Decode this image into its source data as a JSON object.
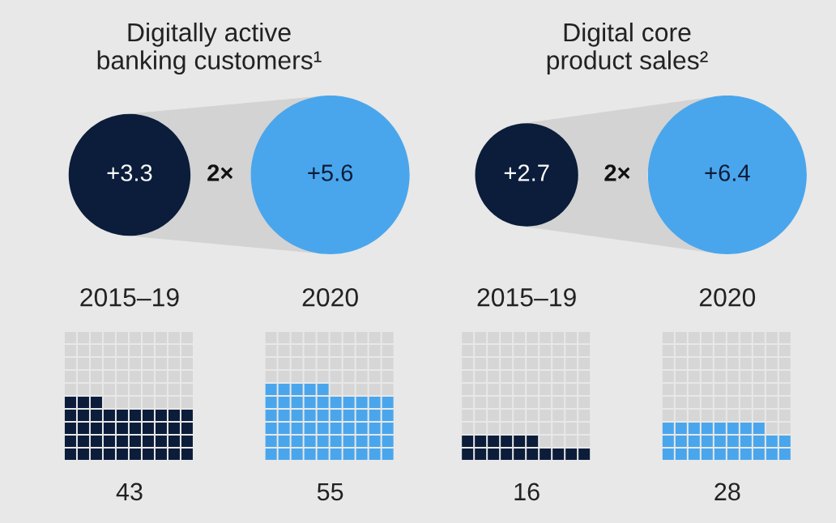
{
  "chart_data": [
    {
      "type": "other",
      "title": "Digitally active\nbanking customers¹",
      "categories": [
        "2015–19",
        "2020"
      ],
      "annotations": [
        "2×"
      ],
      "data_labels": true,
      "series": [
        {
          "type": "bubble",
          "values": [
            3.3,
            5.6
          ],
          "value_labels": [
            "+3.3",
            "+5.6"
          ],
          "colors": [
            "#0b1d3a",
            "#4aa6ec"
          ]
        },
        {
          "type": "other",
          "values": [
            43,
            55
          ],
          "colors": [
            "#0b1d3a",
            "#4aa6ec"
          ]
        }
      ]
    },
    {
      "type": "other",
      "title": "Digital core\nproduct sales²",
      "categories": [
        "2015–19",
        "2020"
      ],
      "annotations": [
        "2×"
      ],
      "data_labels": true,
      "series": [
        {
          "type": "bubble",
          "values": [
            2.7,
            6.4
          ],
          "value_labels": [
            "+2.7",
            "+6.4"
          ],
          "colors": [
            "#0b1d3a",
            "#4aa6ec"
          ]
        },
        {
          "type": "other",
          "values": [
            16,
            28
          ],
          "colors": [
            "#0b1d3a",
            "#4aa6ec"
          ]
        }
      ]
    }
  ]
}
